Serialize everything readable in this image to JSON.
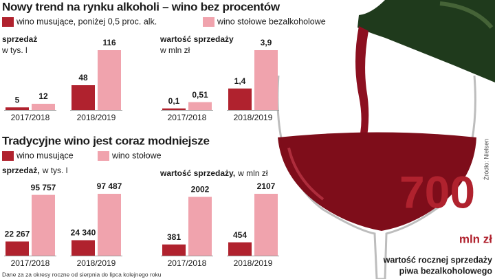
{
  "headlines": [
    "Nowy trend na rynku alkoholi – wino bez procentów",
    "Tradycyjne wino jest coraz modniejsze"
  ],
  "chart_data": [
    {
      "type": "bar",
      "title": "sprzedaż",
      "subtitle": "w tys. l",
      "categories": [
        "2017/2018",
        "2018/2019"
      ],
      "series": [
        {
          "name": "wino musujące, poniżej 0,5 proc. alk.",
          "color": "#b0222e",
          "values": [
            5,
            48
          ]
        },
        {
          "name": "wino stołowe bezalkoholowe",
          "color": "#f0a3ad",
          "values": [
            12,
            116
          ]
        }
      ]
    },
    {
      "type": "bar",
      "title": "wartość sprzedaży",
      "subtitle": "w mln zł",
      "categories": [
        "2017/2018",
        "2018/2019"
      ],
      "series": [
        {
          "color": "#b0222e",
          "values": [
            0.1,
            1.4
          ],
          "value_labels": [
            "0,1",
            "1,4"
          ]
        },
        {
          "color": "#f0a3ad",
          "values": [
            0.51,
            3.9
          ],
          "value_labels": [
            "0,51",
            "3,9"
          ]
        }
      ]
    },
    {
      "type": "bar",
      "title": "sprzedaż,",
      "subtitle": "w tys. l",
      "categories": [
        "2017/2018",
        "2018/2019"
      ],
      "series": [
        {
          "name": "wino musujące",
          "color": "#b0222e",
          "values": [
            22267,
            24340
          ],
          "value_labels": [
            "22 267",
            "24 340"
          ]
        },
        {
          "name": "wino stołowe",
          "color": "#f0a3ad",
          "values": [
            95757,
            97487
          ],
          "value_labels": [
            "95 757",
            "97 487"
          ]
        }
      ]
    },
    {
      "type": "bar",
      "title": "wartość sprzedaży,",
      "subtitle": "w mln zł",
      "categories": [
        "2017/2018",
        "2018/2019"
      ],
      "series": [
        {
          "color": "#b0222e",
          "values": [
            381,
            454
          ]
        },
        {
          "color": "#f0a3ad",
          "values": [
            2002,
            2107
          ]
        }
      ]
    }
  ],
  "beer": {
    "value": 700,
    "unit": "mln zł",
    "caption": [
      "wartość rocznej sprzedaży",
      "piwa bezalkoholowego"
    ]
  },
  "source": "Źródło: Nielsen",
  "footnote": "Dane za za okresy roczne od sierpnia do lipca kolejnego roku"
}
